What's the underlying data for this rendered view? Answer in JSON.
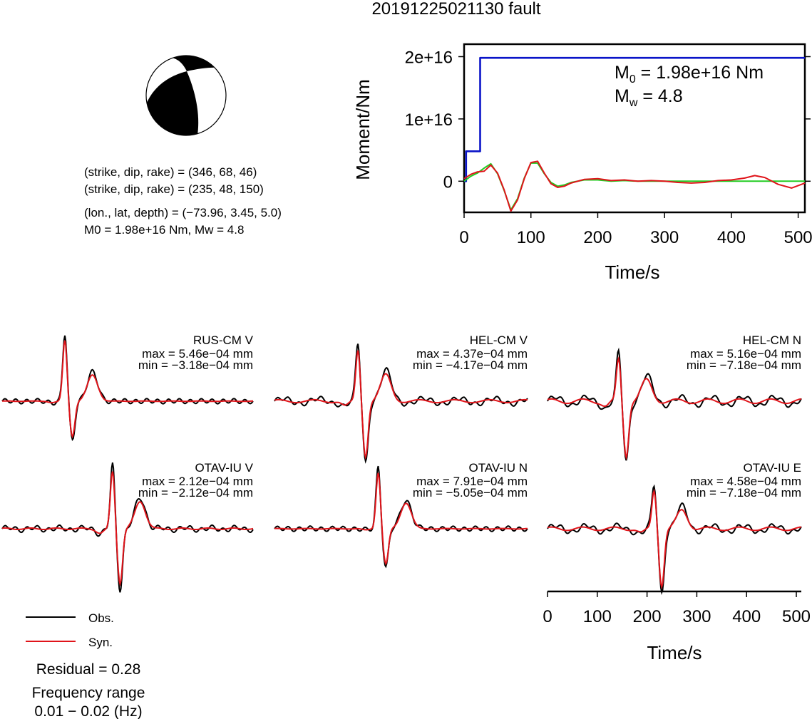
{
  "title": "20191225021130 fault",
  "focal": {
    "line1": "(strike, dip, rake) = (346, 68, 46)",
    "line2": "(strike, dip, rake) = (235, 48, 150)",
    "line3": "(lon., lat, depth) = (−73.96, 3.45, 5.0)",
    "line4": "M0 = 1.98e+16 Nm, Mw = 4.8"
  },
  "colors": {
    "obs": "#000000",
    "syn": "#e0141a",
    "moment": "#0a14c8",
    "stf": "#22cc22"
  },
  "legend": {
    "obs": "Obs.",
    "syn": "Syn."
  },
  "residual": "Residual = 0.28",
  "freq_label": "Frequency range",
  "freq_value": "0.01 − 0.02 (Hz)",
  "chart_data": [
    {
      "type": "line",
      "name": "moment",
      "xlabel": "Time/s",
      "ylabel": "Moment/Nm",
      "xlim": [
        0,
        510
      ],
      "ylim": [
        -5000000000000000.0,
        2.2e+16
      ],
      "xticks": [
        0,
        100,
        200,
        300,
        400,
        500
      ],
      "yticks": [
        0,
        1e+16,
        2e+16
      ],
      "ytick_labels": [
        "0",
        "1e+16",
        "2e+16"
      ],
      "annotation_m0": "M0 = 1.98e+16 Nm",
      "annotation_mw": "Mw = 4.8",
      "series": [
        {
          "color": "blue",
          "x": [
            0,
            3,
            3,
            24,
            24,
            510
          ],
          "y": [
            0,
            0,
            4800000000000000.0,
            4800000000000000.0,
            1.98e+16,
            1.98e+16
          ]
        },
        {
          "color": "green",
          "x": [
            0,
            10,
            20,
            30,
            40,
            50,
            60,
            70,
            80,
            90,
            100,
            110,
            120,
            130,
            140,
            150,
            160,
            180,
            200,
            220,
            240,
            260,
            280,
            300,
            340,
            380,
            420,
            460,
            500,
            510
          ],
          "y": [
            0,
            800000000000000.0,
            1300000000000000.0,
            2100000000000000.0,
            2800000000000000.0,
            1200000000000000.0,
            -1500000000000000.0,
            -4600000000000000.0,
            -2800000000000000.0,
            500000000000000.0,
            2900000000000000.0,
            2900000000000000.0,
            1200000000000000.0,
            -200000000000000.0,
            -800000000000000.0,
            -600000000000000.0,
            -200000000000000.0,
            200000000000000.0,
            200000000000000.0,
            0,
            100000000000000.0,
            0,
            0,
            0,
            0,
            0,
            0,
            0,
            0,
            0
          ]
        },
        {
          "color": "red",
          "x": [
            0,
            10,
            20,
            30,
            40,
            50,
            60,
            70,
            80,
            90,
            100,
            110,
            120,
            130,
            140,
            150,
            160,
            180,
            200,
            220,
            240,
            260,
            280,
            300,
            320,
            340,
            360,
            380,
            400,
            420,
            435,
            450,
            470,
            490,
            510
          ],
          "y": [
            400000000000000.0,
            1100000000000000.0,
            1500000000000000.0,
            1600000000000000.0,
            2600000000000000.0,
            1300000000000000.0,
            -1400000000000000.0,
            -4800000000000000.0,
            -3000000000000000.0,
            400000000000000.0,
            3000000000000000.0,
            3200000000000000.0,
            1300000000000000.0,
            -400000000000000.0,
            -1000000000000000.0,
            -800000000000000.0,
            -300000000000000.0,
            300000000000000.0,
            400000000000000.0,
            100000000000000.0,
            200000000000000.0,
            0,
            100000000000000.0,
            0,
            -200000000000000.0,
            -300000000000000.0,
            -200000000000000.0,
            100000000000000.0,
            200000000000000.0,
            500000000000000.0,
            900000000000000.0,
            600000000000000.0,
            -500000000000000.0,
            -1100000000000000.0,
            -300000000000000.0
          ]
        }
      ]
    },
    {
      "type": "line",
      "name": "waveforms",
      "xlabel": "Time/s",
      "xlim": [
        0,
        510
      ],
      "xticks": [
        0,
        100,
        200,
        300,
        400,
        500
      ],
      "traces": [
        {
          "station": "RUS-CM V",
          "max": "max = 5.46e−04 mm",
          "min": "min = −3.18e−04 mm"
        },
        {
          "station": "HEL-CM V",
          "max": "max = 4.37e−04 mm",
          "min": "min = −4.17e−04 mm"
        },
        {
          "station": "HEL-CM N",
          "max": "max = 5.16e−04 mm",
          "min": "min = −7.18e−04 mm"
        },
        {
          "station": "OTAV-IU V",
          "max": "max = 2.12e−04 mm",
          "min": "min = −2.12e−04 mm"
        },
        {
          "station": "OTAV-IU N",
          "max": "max = 7.91e−04 mm",
          "min": "min = −5.05e−04 mm"
        },
        {
          "station": "OTAV-IU E",
          "max": "max = 4.58e−04 mm",
          "min": "min = −7.18e−04 mm"
        }
      ]
    }
  ]
}
